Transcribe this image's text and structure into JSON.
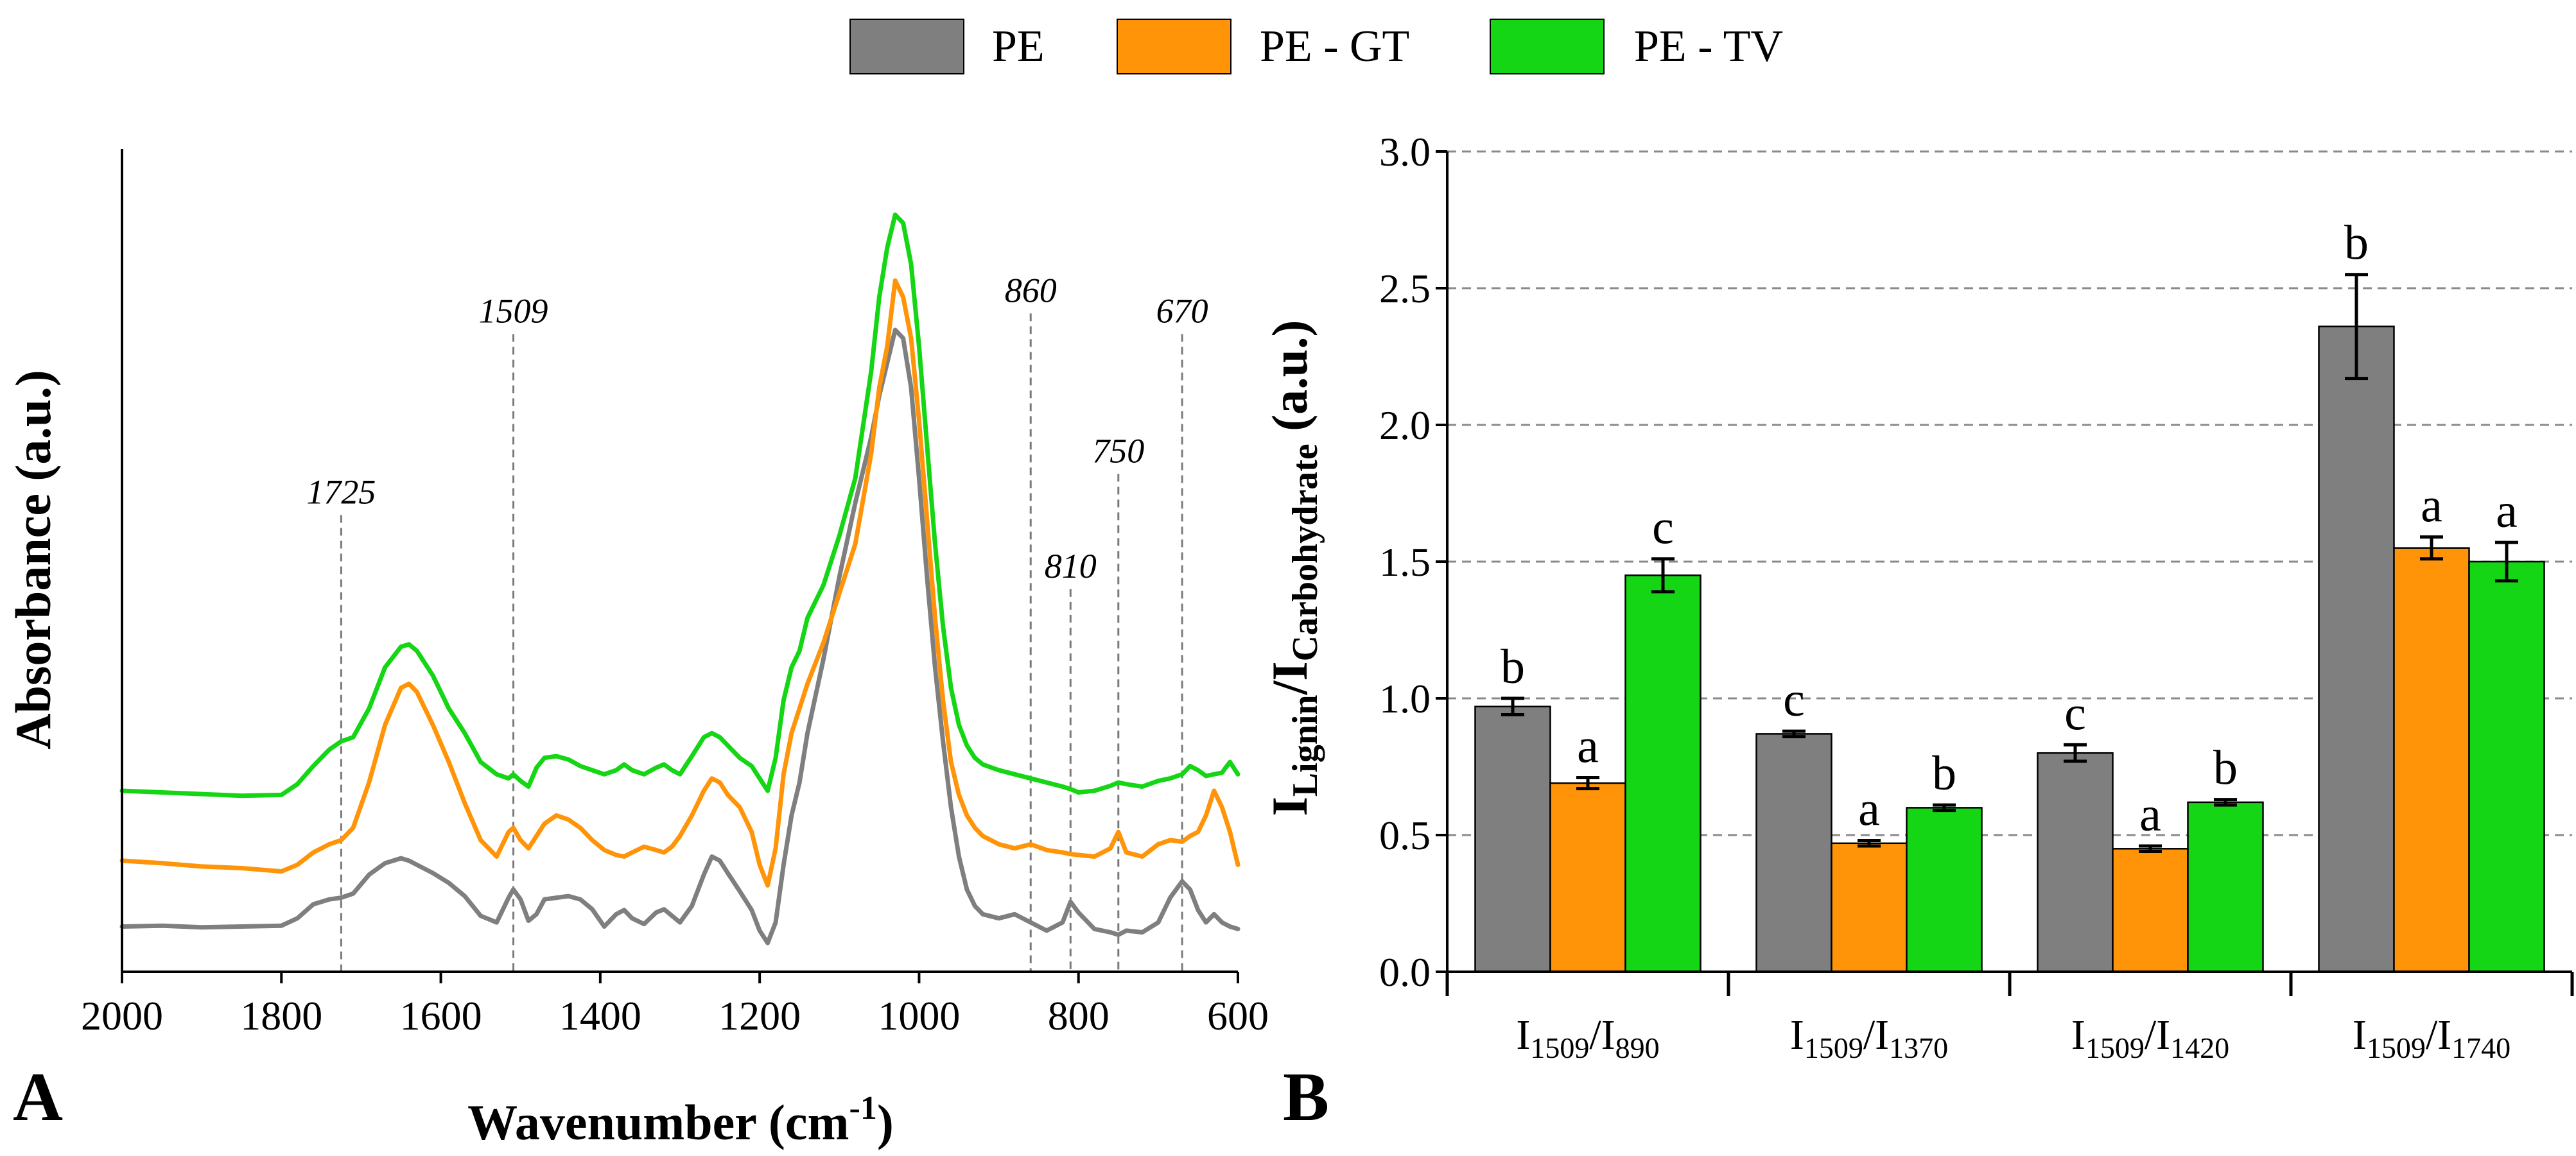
{
  "legend": [
    {
      "label": "PE",
      "color": "#7f7f7f"
    },
    {
      "label": "PE - GT",
      "color": "#ff9408"
    },
    {
      "label": "PE - TV",
      "color": "#14d614"
    }
  ],
  "panels": {
    "a": "A",
    "b": "B"
  },
  "chart_data": [
    {
      "type": "line",
      "title": "",
      "xlabel": "Wavenumber (cm-1)",
      "xlabel_main": "Wavenumber (cm",
      "xlabel_sup": "-1",
      "xlabel_close": ")",
      "ylabel": "Absorbance (a.u.)",
      "xlim": [
        2000,
        600
      ],
      "ylim": [
        0,
        1
      ],
      "xticks": [
        "2000",
        "1800",
        "1600",
        "1400",
        "1200",
        "1000",
        "800",
        "600"
      ],
      "xtick_values": [
        2000,
        1800,
        1600,
        1400,
        1200,
        1000,
        800,
        600
      ],
      "peak_markers": [
        {
          "label": "1725",
          "x": 1725,
          "top": 0.555
        },
        {
          "label": "1509",
          "x": 1509,
          "top": 0.775
        },
        {
          "label": "860",
          "x": 860,
          "top": 0.8
        },
        {
          "label": "810",
          "x": 810,
          "top": 0.465
        },
        {
          "label": "750",
          "x": 750,
          "top": 0.605
        },
        {
          "label": "670",
          "x": 670,
          "top": 0.775
        }
      ],
      "x": [
        2000,
        1950,
        1900,
        1850,
        1800,
        1780,
        1760,
        1740,
        1725,
        1710,
        1690,
        1670,
        1650,
        1640,
        1630,
        1610,
        1590,
        1570,
        1550,
        1530,
        1515,
        1509,
        1500,
        1490,
        1480,
        1470,
        1455,
        1440,
        1425,
        1410,
        1395,
        1380,
        1370,
        1360,
        1345,
        1330,
        1320,
        1310,
        1300,
        1285,
        1270,
        1260,
        1250,
        1240,
        1225,
        1210,
        1200,
        1190,
        1180,
        1170,
        1160,
        1150,
        1140,
        1120,
        1100,
        1080,
        1060,
        1050,
        1040,
        1030,
        1020,
        1010,
        1000,
        990,
        980,
        970,
        960,
        950,
        940,
        930,
        920,
        900,
        880,
        860,
        840,
        820,
        810,
        800,
        780,
        760,
        750,
        740,
        720,
        700,
        685,
        670,
        660,
        650,
        640,
        630,
        620,
        610,
        600
      ],
      "series": [
        {
          "name": "PE",
          "color": "#7f7f7f",
          "values": [
            0.055,
            0.056,
            0.054,
            0.055,
            0.056,
            0.065,
            0.082,
            0.088,
            0.09,
            0.095,
            0.118,
            0.132,
            0.138,
            0.135,
            0.13,
            0.12,
            0.108,
            0.092,
            0.068,
            0.06,
            0.09,
            0.1,
            0.088,
            0.062,
            0.07,
            0.088,
            0.09,
            0.092,
            0.088,
            0.076,
            0.055,
            0.07,
            0.075,
            0.065,
            0.058,
            0.072,
            0.076,
            0.068,
            0.06,
            0.08,
            0.118,
            0.14,
            0.135,
            0.12,
            0.098,
            0.075,
            0.05,
            0.035,
            0.06,
            0.13,
            0.19,
            0.23,
            0.29,
            0.38,
            0.48,
            0.57,
            0.65,
            0.7,
            0.74,
            0.78,
            0.77,
            0.71,
            0.6,
            0.48,
            0.37,
            0.28,
            0.2,
            0.14,
            0.1,
            0.08,
            0.07,
            0.065,
            0.07,
            0.06,
            0.05,
            0.06,
            0.085,
            0.072,
            0.052,
            0.048,
            0.045,
            0.05,
            0.048,
            0.06,
            0.09,
            0.11,
            0.1,
            0.075,
            0.06,
            0.07,
            0.06,
            0.055,
            0.052
          ]
        },
        {
          "name": "PE - GT",
          "color": "#ff9408",
          "values": [
            0.135,
            0.132,
            0.128,
            0.126,
            0.122,
            0.13,
            0.145,
            0.155,
            0.16,
            0.175,
            0.23,
            0.3,
            0.345,
            0.35,
            0.34,
            0.3,
            0.255,
            0.205,
            0.16,
            0.14,
            0.17,
            0.175,
            0.16,
            0.15,
            0.165,
            0.18,
            0.19,
            0.185,
            0.175,
            0.16,
            0.148,
            0.142,
            0.14,
            0.145,
            0.152,
            0.148,
            0.145,
            0.152,
            0.165,
            0.19,
            0.22,
            0.235,
            0.23,
            0.215,
            0.2,
            0.17,
            0.13,
            0.105,
            0.15,
            0.24,
            0.29,
            0.32,
            0.35,
            0.4,
            0.46,
            0.52,
            0.63,
            0.71,
            0.76,
            0.84,
            0.82,
            0.77,
            0.67,
            0.55,
            0.43,
            0.33,
            0.255,
            0.215,
            0.19,
            0.175,
            0.165,
            0.155,
            0.15,
            0.155,
            0.148,
            0.145,
            0.143,
            0.142,
            0.14,
            0.15,
            0.17,
            0.145,
            0.14,
            0.155,
            0.16,
            0.158,
            0.165,
            0.17,
            0.19,
            0.22,
            0.2,
            0.17,
            0.13
          ]
        },
        {
          "name": "PE - TV",
          "color": "#14d614",
          "values": [
            0.22,
            0.218,
            0.216,
            0.214,
            0.215,
            0.228,
            0.25,
            0.27,
            0.28,
            0.285,
            0.32,
            0.37,
            0.395,
            0.398,
            0.39,
            0.36,
            0.32,
            0.29,
            0.255,
            0.24,
            0.235,
            0.24,
            0.232,
            0.225,
            0.248,
            0.26,
            0.262,
            0.258,
            0.25,
            0.245,
            0.24,
            0.245,
            0.252,
            0.245,
            0.24,
            0.248,
            0.252,
            0.245,
            0.24,
            0.262,
            0.285,
            0.29,
            0.285,
            0.275,
            0.26,
            0.25,
            0.235,
            0.22,
            0.26,
            0.33,
            0.37,
            0.39,
            0.43,
            0.47,
            0.53,
            0.6,
            0.73,
            0.82,
            0.88,
            0.92,
            0.91,
            0.86,
            0.76,
            0.64,
            0.52,
            0.42,
            0.345,
            0.3,
            0.275,
            0.26,
            0.252,
            0.245,
            0.24,
            0.235,
            0.23,
            0.225,
            0.222,
            0.218,
            0.22,
            0.226,
            0.23,
            0.228,
            0.225,
            0.232,
            0.235,
            0.24,
            0.25,
            0.245,
            0.238,
            0.24,
            0.242,
            0.255,
            0.24
          ]
        }
      ]
    },
    {
      "type": "bar",
      "title": "",
      "xlabel": "",
      "ylabel": "I_Lignin / I_Carbohydrate (a.u.)",
      "ylabel_parts": {
        "main1": "I",
        "sub1": "Lignin",
        "slash": "/I",
        "sub2": "Carbohydrate",
        "tail": " (a.u.)"
      },
      "ylim": [
        0,
        3
      ],
      "yticks": [
        "0.0",
        "0.5",
        "1.0",
        "1.5",
        "2.0",
        "2.5",
        "3.0"
      ],
      "ytick_values": [
        0,
        0.5,
        1,
        1.5,
        2,
        2.5,
        3
      ],
      "grid": true,
      "categories": [
        "I1509/I890",
        "I1509/I1370",
        "I1509/I1420",
        "I1509/I1740"
      ],
      "category_parts": [
        {
          "n": "I",
          "n_sub": "1509",
          "d": "/I",
          "d_sub": "890"
        },
        {
          "n": "I",
          "n_sub": "1509",
          "d": "/I",
          "d_sub": "1370"
        },
        {
          "n": "I",
          "n_sub": "1509",
          "d": "/I",
          "d_sub": "1420"
        },
        {
          "n": "I",
          "n_sub": "1509",
          "d": "/I",
          "d_sub": "1740"
        }
      ],
      "series": [
        {
          "name": "PE",
          "color": "#7f7f7f",
          "values": [
            0.97,
            0.87,
            0.8,
            2.36
          ],
          "errors": [
            0.03,
            0.01,
            0.03,
            0.19
          ],
          "letters": [
            "b",
            "c",
            "c",
            "b"
          ]
        },
        {
          "name": "PE - GT",
          "color": "#ff9408",
          "values": [
            0.69,
            0.47,
            0.45,
            1.55
          ],
          "errors": [
            0.02,
            0.01,
            0.01,
            0.04
          ],
          "letters": [
            "a",
            "a",
            "a",
            "a"
          ]
        },
        {
          "name": "PE - TV",
          "color": "#14d614",
          "values": [
            1.45,
            0.6,
            0.62,
            1.5
          ],
          "errors": [
            0.06,
            0.01,
            0.01,
            0.07
          ],
          "letters": [
            "c",
            "b",
            "b",
            "a"
          ]
        }
      ]
    }
  ]
}
